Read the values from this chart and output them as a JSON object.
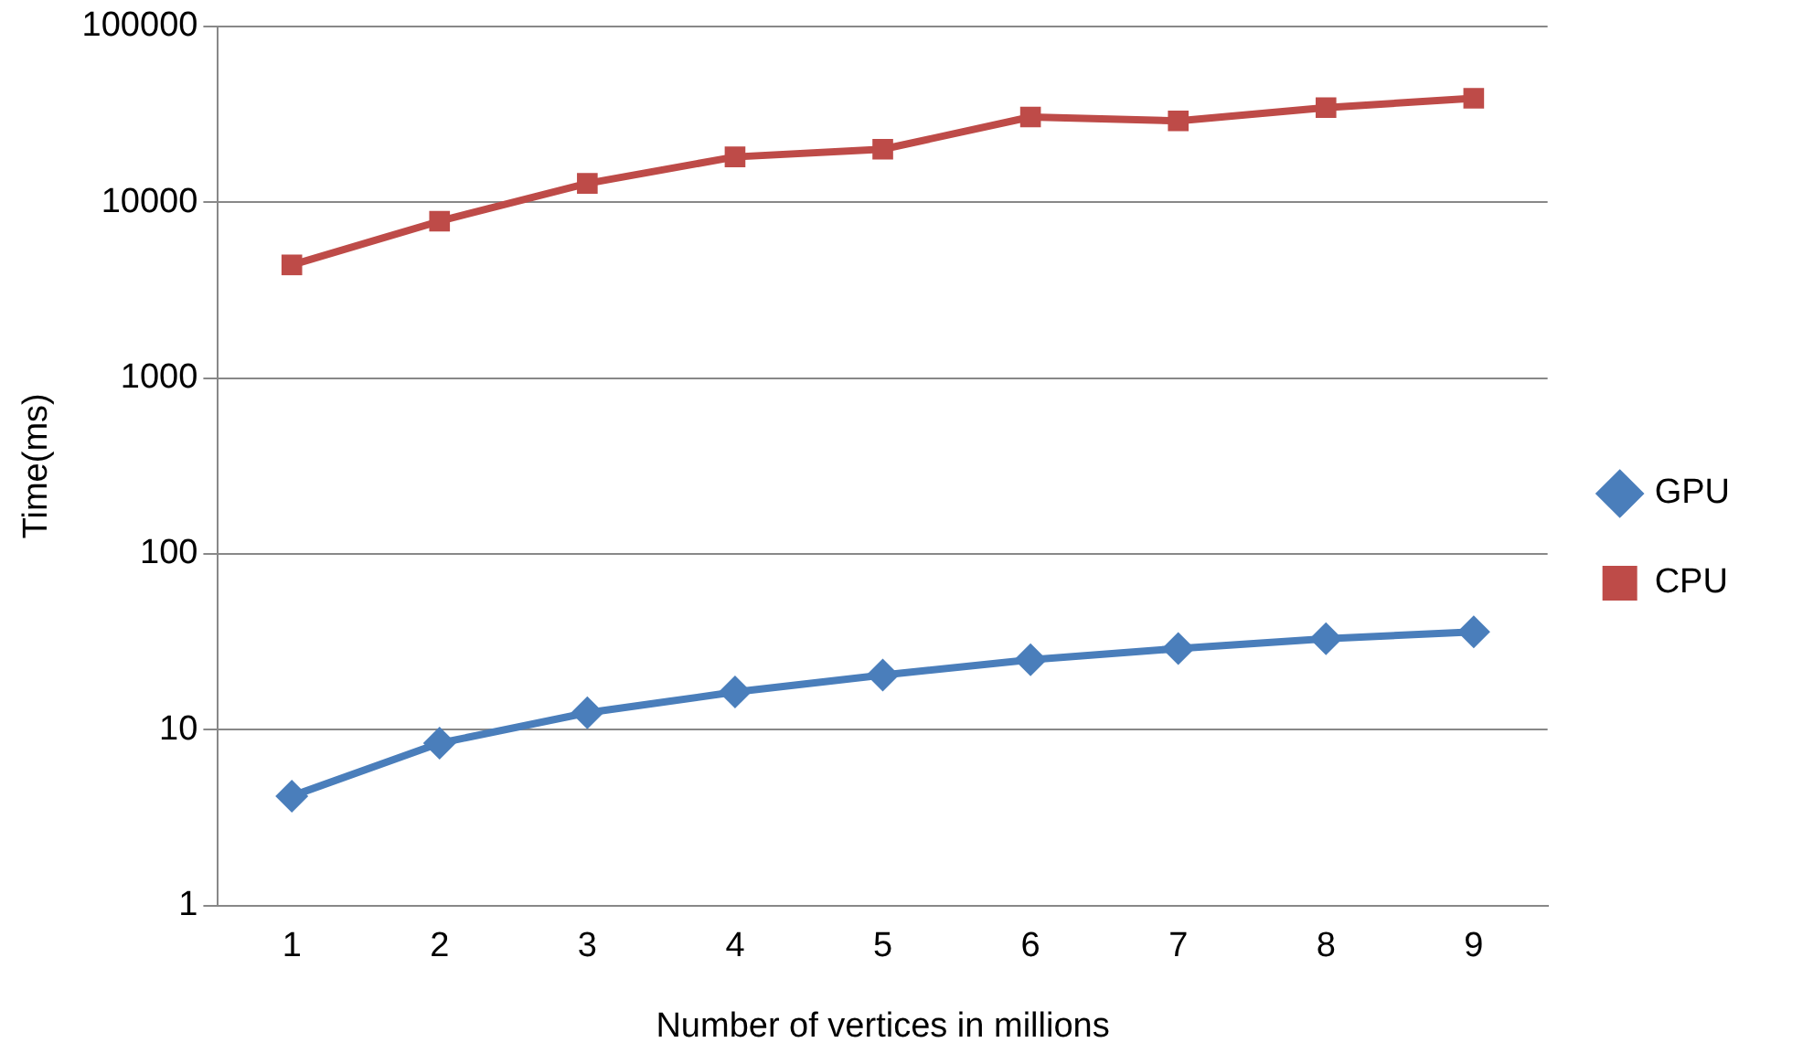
{
  "chart_data": {
    "type": "line",
    "xlabel": "Number of vertices in millions",
    "ylabel": "Time(ms)",
    "categories": [
      "1",
      "2",
      "3",
      "4",
      "5",
      "6",
      "7",
      "8",
      "9"
    ],
    "series": [
      {
        "name": "GPU",
        "color": "#4a7ebb",
        "marker": "diamond",
        "values": [
          4.2,
          8.4,
          12.5,
          16.4,
          20.5,
          25,
          29,
          33,
          36
        ]
      },
      {
        "name": "CPU",
        "color": "#be4b48",
        "marker": "square",
        "values": [
          4400,
          7800,
          12800,
          18100,
          20000,
          30500,
          29000,
          34500,
          39000
        ]
      }
    ],
    "log": "y",
    "ylim": [
      1,
      100000
    ],
    "yticks": [
      1,
      10,
      100,
      1000,
      10000,
      100000
    ],
    "grid": "y",
    "legend": "right",
    "line_style": "solid"
  }
}
